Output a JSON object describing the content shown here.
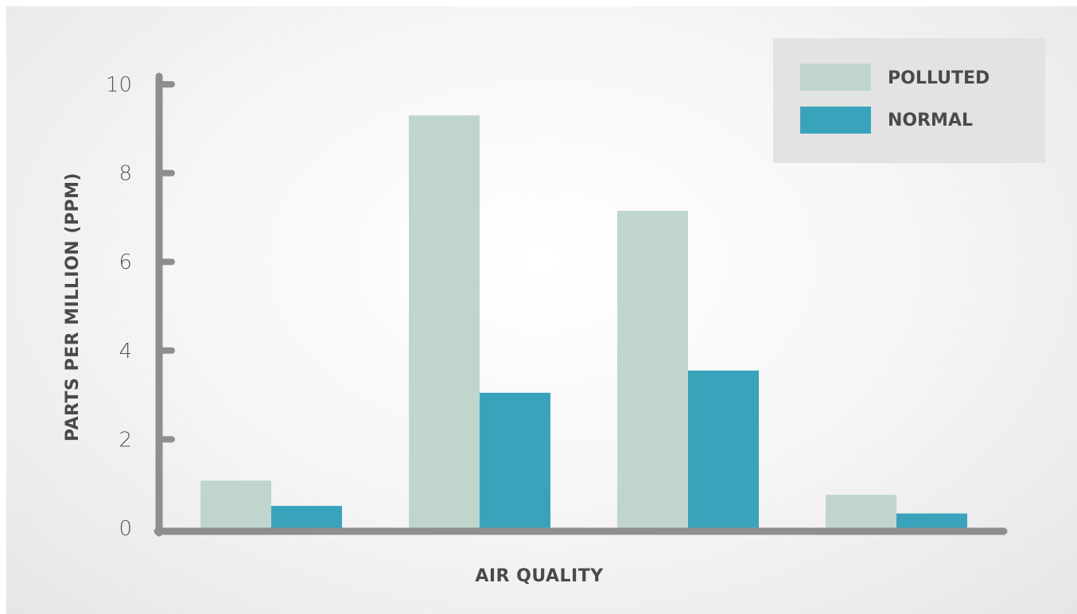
{
  "chart_data": {
    "type": "bar",
    "categories": [
      "",
      "",
      "",
      ""
    ],
    "series": [
      {
        "name": "POLLUTED",
        "values": [
          1.07,
          9.3,
          7.15,
          0.75
        ],
        "color": "#c0d6cc"
      },
      {
        "name": "NORMAL",
        "values": [
          0.5,
          3.05,
          3.55,
          0.33
        ],
        "color": "#39a3bc"
      }
    ],
    "xlabel": "AIR QUALITY",
    "ylabel": "PARTS PER MILLION (PPM)",
    "ylim": [
      0,
      10
    ],
    "yticks": [
      0,
      2,
      4,
      6,
      8,
      10
    ],
    "grid": false,
    "legend": "top-right"
  }
}
